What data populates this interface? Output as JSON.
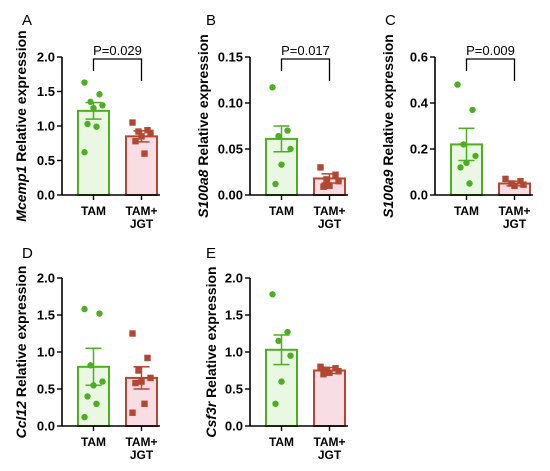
{
  "colors": {
    "tam": "#4caf22",
    "tam_fill": "#eaf7e3",
    "jgt": "#b24732",
    "jgt_fill": "#f9dde4",
    "axis": "#000000"
  },
  "chart_data": [
    {
      "type": "bar",
      "letter": "A",
      "ylabel_gene": "Mcemp1",
      "ylabel_rest": " Relative expression",
      "categories": [
        "TAM",
        [
          "TAM+",
          "JGT"
        ]
      ],
      "ylim": [
        0,
        2.0
      ],
      "yticks": [
        0,
        0.5,
        1.0,
        1.5,
        2.0
      ],
      "ytick_labels": [
        "0.0",
        "0.5",
        "1.0",
        "1.5",
        "2.0"
      ],
      "series": [
        {
          "mean": 1.22,
          "sem": 0.12,
          "points": [
            1.63,
            1.46,
            1.35,
            1.3,
            1.26,
            1.03,
            0.99,
            0.62
          ]
        },
        {
          "mean": 0.85,
          "sem": 0.08,
          "points": [
            1.05,
            0.94,
            0.92,
            0.9,
            0.85,
            0.78,
            0.6
          ]
        }
      ],
      "pvalue": "P=0.029"
    },
    {
      "type": "bar",
      "letter": "B",
      "ylabel_gene": "S100a8",
      "ylabel_rest": " Relative expression",
      "categories": [
        "TAM",
        [
          "TAM+",
          "JGT"
        ]
      ],
      "ylim": [
        0,
        0.15
      ],
      "yticks": [
        0,
        0.05,
        0.1,
        0.15
      ],
      "ytick_labels": [
        "0.00",
        "0.05",
        "0.10",
        "0.15"
      ],
      "series": [
        {
          "mean": 0.061,
          "sem": 0.014,
          "points": [
            0.117,
            0.07,
            0.064,
            0.05,
            0.033,
            0.012
          ]
        },
        {
          "mean": 0.018,
          "sem": 0.005,
          "points": [
            0.03,
            0.022,
            0.017,
            0.015,
            0.01,
            0.009
          ]
        }
      ],
      "pvalue": "P=0.017"
    },
    {
      "type": "bar",
      "letter": "C",
      "ylabel_gene": "S100a9",
      "ylabel_rest": " Relative expression",
      "categories": [
        "TAM",
        [
          "TAM+",
          "JGT"
        ]
      ],
      "ylim": [
        0,
        0.6
      ],
      "yticks": [
        0,
        0.2,
        0.4,
        0.6
      ],
      "ytick_labels": [
        "0.0",
        "0.2",
        "0.4",
        "0.6"
      ],
      "series": [
        {
          "mean": 0.22,
          "sem": 0.07,
          "points": [
            0.48,
            0.37,
            0.22,
            0.17,
            0.14,
            0.12,
            0.05
          ]
        },
        {
          "mean": 0.05,
          "sem": 0.01,
          "points": [
            0.07,
            0.06,
            0.05,
            0.045,
            0.04
          ]
        }
      ],
      "pvalue": "P=0.009"
    },
    {
      "type": "bar",
      "letter": "D",
      "ylabel_gene": "Ccl12",
      "ylabel_rest": " Relative expression",
      "categories": [
        "TAM",
        [
          "TAM+",
          "JGT"
        ]
      ],
      "ylim": [
        0,
        2.0
      ],
      "yticks": [
        0,
        0.5,
        1.0,
        1.5,
        2.0
      ],
      "ytick_labels": [
        "0.0",
        "0.5",
        "1.0",
        "1.5",
        "2.0"
      ],
      "series": [
        {
          "mean": 0.8,
          "sem": 0.25,
          "points": [
            1.58,
            1.52,
            0.82,
            0.6,
            0.55,
            0.4,
            0.3,
            0.12
          ]
        },
        {
          "mean": 0.65,
          "sem": 0.15,
          "points": [
            1.25,
            0.92,
            0.75,
            0.65,
            0.6,
            0.58,
            0.3,
            0.18
          ]
        }
      ],
      "pvalue": ""
    },
    {
      "type": "bar",
      "letter": "E",
      "ylabel_gene": "Csf3r",
      "ylabel_rest": " Relative expression",
      "categories": [
        "TAM",
        [
          "TAM+",
          "JGT"
        ]
      ],
      "ylim": [
        0,
        2.0
      ],
      "yticks": [
        0,
        0.5,
        1.0,
        1.5,
        2.0
      ],
      "ytick_labels": [
        "0.0",
        "0.5",
        "1.0",
        "1.5",
        "2.0"
      ],
      "series": [
        {
          "mean": 1.03,
          "sem": 0.2,
          "points": [
            1.78,
            1.27,
            1.15,
            0.95,
            0.6,
            0.3
          ]
        },
        {
          "mean": 0.75,
          "sem": 0.04,
          "points": [
            0.8,
            0.78,
            0.76,
            0.74,
            0.72,
            0.7
          ]
        }
      ],
      "pvalue": ""
    }
  ]
}
